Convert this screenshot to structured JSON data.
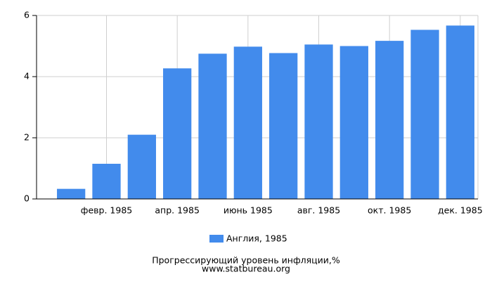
{
  "chart_data": {
    "type": "bar",
    "title": "Прогрессирующий уровень инфляции,%",
    "subtitle": "www.statbureau.org",
    "categories": [
      null,
      "февр. 1985",
      null,
      "апр. 1985",
      null,
      "июнь 1985",
      null,
      "авг. 1985",
      null,
      "окт. 1985",
      null,
      "дек. 1985"
    ],
    "series": [
      {
        "name": "Англия, 1985",
        "color": "#428bec",
        "values": [
          0.33,
          1.15,
          2.1,
          4.27,
          4.75,
          4.98,
          4.77,
          5.05,
          5.0,
          5.17,
          5.53,
          5.67
        ]
      }
    ],
    "ylim": [
      0,
      6
    ],
    "yticks": [
      0,
      2,
      4,
      6
    ],
    "grid": true
  }
}
